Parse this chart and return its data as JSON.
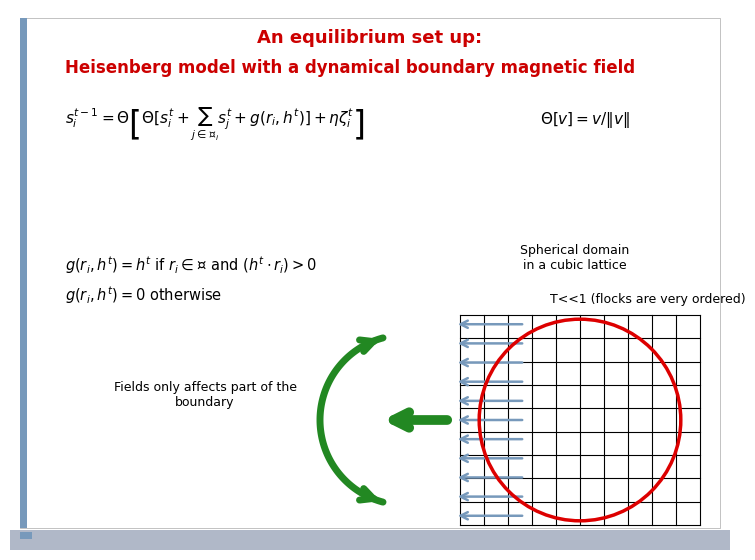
{
  "title1": "An equilibrium set up:",
  "title2": "Heisenberg model with a dynamical boundary magnetic field",
  "title1_color": "#cc0000",
  "title2_color": "#cc0000",
  "bg_color": "#ffffff",
  "label_spherical": "Spherical domain\nin a cubic lattice",
  "label_T": "T<<1 (flocks are very ordered)",
  "label_fields": "Fields only affects part of the\nboundary",
  "grid_color": "#000000",
  "circle_color": "#dd0000",
  "arrow_color": "#7799bb",
  "green_color": "#228822",
  "grid_nx": 10,
  "grid_ny": 9,
  "num_blue_arrows": 11,
  "left_bar_color": "#7799bb",
  "bottom_bar_color": "#b0b8c8"
}
